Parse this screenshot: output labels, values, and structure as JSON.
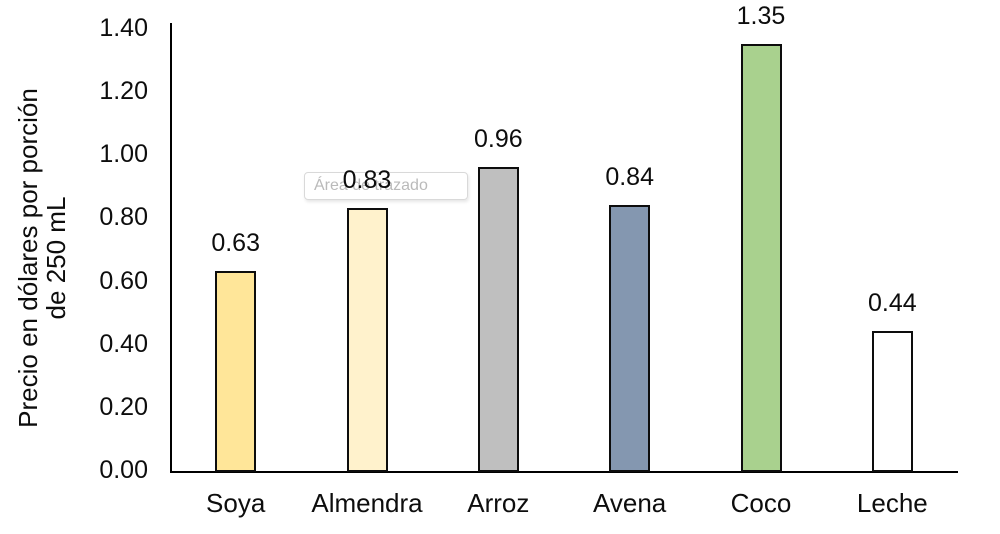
{
  "chart_data": {
    "type": "bar",
    "title": "",
    "xlabel": "",
    "ylabel": "Precio en dólares por porción de 250 mL",
    "ylabel_lines": [
      "Precio en dólares por porción",
      "de 250 mL"
    ],
    "categories": [
      "Soya",
      "Almendra",
      "Arroz",
      "Avena",
      "Coco",
      "Leche"
    ],
    "values": [
      0.63,
      0.83,
      0.96,
      0.84,
      1.35,
      0.44
    ],
    "value_labels": [
      "0.63",
      "0.83",
      "0.96",
      "0.84",
      "1.35",
      "0.44"
    ],
    "bar_colors": [
      "#FFE699",
      "#FFF2CC",
      "#BFBFBF",
      "#8497B0",
      "#A9D18E",
      "#FFFFFF"
    ],
    "bar_border_color": "#0D0D0D",
    "axis_color": "#000000",
    "text_color": "#0D0D0D",
    "ylim": [
      0.0,
      1.4
    ],
    "yticks": [
      0.0,
      0.2,
      0.4,
      0.6,
      0.8,
      1.0,
      1.2,
      1.4
    ],
    "ytick_labels": [
      "0.00",
      "0.20",
      "0.40",
      "0.60",
      "0.80",
      "1.00",
      "1.20",
      "1.40"
    ],
    "grid": false,
    "legend": null
  },
  "overlay": {
    "plot_area_tooltip": "Área de trazado"
  }
}
